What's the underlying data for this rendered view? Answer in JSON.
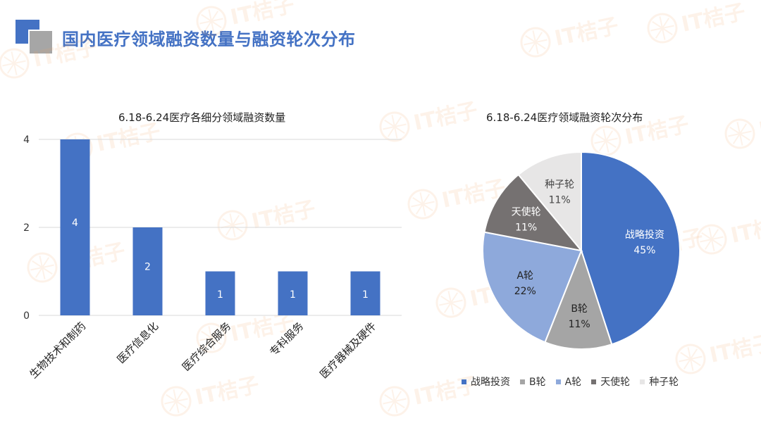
{
  "page": {
    "title": "国内医疗领域融资数量与融资轮次分布",
    "accent": "#4472C4",
    "watermark": "IT桔子"
  },
  "chart_data": [
    {
      "type": "bar",
      "title": "6.18-6.24医疗各细分领域融资数量",
      "categories": [
        "生物技术和制药",
        "医疗信息化",
        "医疗综合服务",
        "专科服务",
        "医疗器械及硬件"
      ],
      "values": [
        4,
        2,
        1,
        1,
        1
      ],
      "yticks": [
        0,
        2,
        4
      ],
      "ylim": [
        0,
        4
      ],
      "grid": true,
      "data_labels": true,
      "color": "#4472C4"
    },
    {
      "type": "pie",
      "title": "6.18-6.24医疗领域融资轮次分布",
      "labels": [
        "战略投资",
        "B轮",
        "A轮",
        "天使轮",
        "种子轮"
      ],
      "values": [
        45,
        11,
        22,
        11,
        11
      ],
      "value_labels": [
        "45%",
        "11%",
        "22%",
        "11%",
        "11%"
      ],
      "colors": [
        "#4472C4",
        "#A5A5A5",
        "#8EA9DB",
        "#757171",
        "#E7E6E6"
      ],
      "legend": "bottom"
    }
  ]
}
